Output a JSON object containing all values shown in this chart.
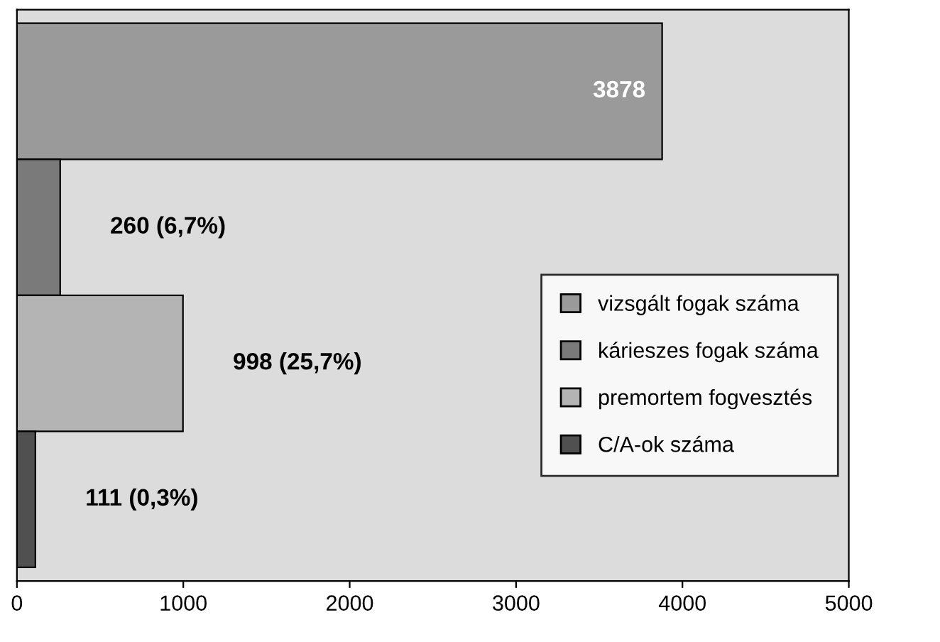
{
  "chart_data": {
    "type": "bar",
    "orientation": "horizontal",
    "categories": [
      null
    ],
    "series": [
      {
        "name": "vizsgált fogak száma",
        "color": "#9a9a9a",
        "values": [
          3878
        ],
        "value_labels": [
          "3878"
        ]
      },
      {
        "name": "kárieszes fogak száma",
        "color": "#7a7a7a",
        "values": [
          260
        ],
        "value_labels": [
          "260 (6,7%)"
        ]
      },
      {
        "name": "premortem fogvesztés",
        "color": "#b4b4b4",
        "values": [
          998
        ],
        "value_labels": [
          "998 (25,7%)"
        ]
      },
      {
        "name": "C/A-ok száma",
        "color": "#505050",
        "values": [
          111
        ],
        "value_labels": [
          "111 (0,3%)"
        ]
      }
    ],
    "xlim": [
      0,
      5000
    ],
    "xticks": [
      0,
      1000,
      2000,
      3000,
      4000,
      5000
    ],
    "grid": false,
    "legend": "right"
  }
}
